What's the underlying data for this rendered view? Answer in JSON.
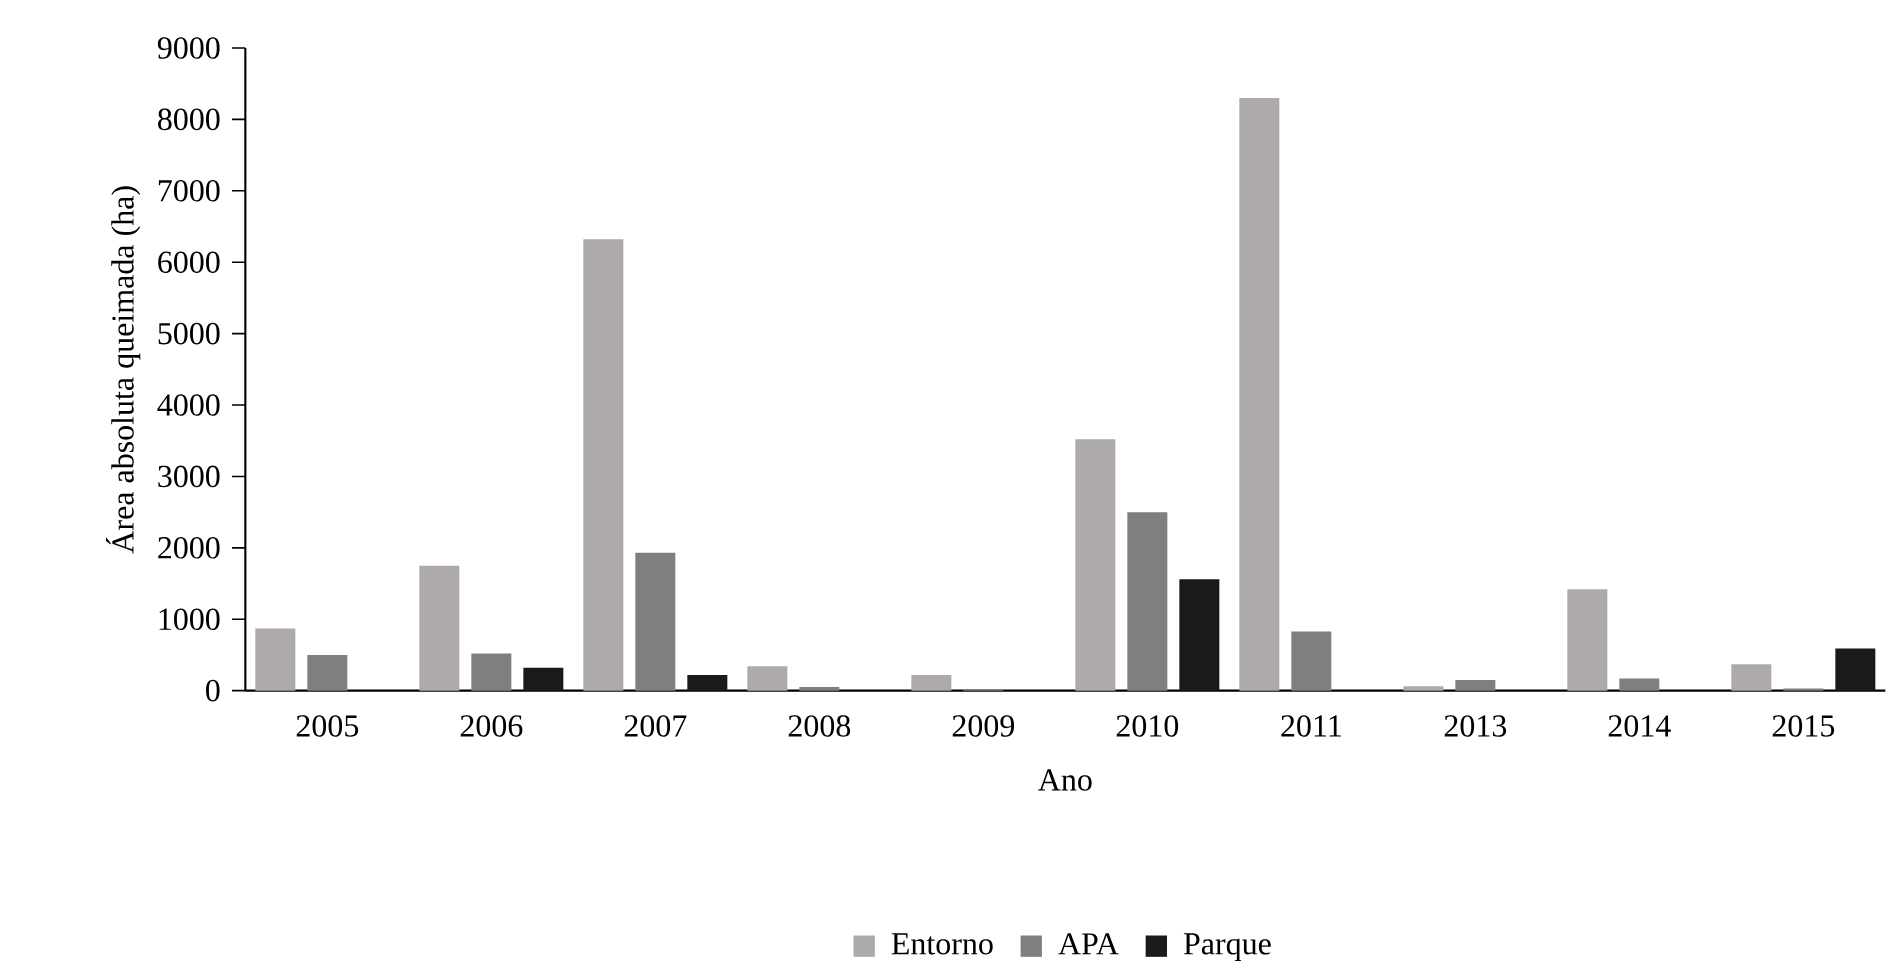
{
  "chart_data": {
    "type": "bar",
    "xlabel": "Ano",
    "ylabel": "Área absoluta queimada (ha)",
    "categories": [
      "2005",
      "2006",
      "2007",
      "2008",
      "2009",
      "2010",
      "2011",
      "2013",
      "2014",
      "2015"
    ],
    "series": [
      {
        "name": "Entorno",
        "color": "#aeaaaa",
        "values": [
          870,
          1750,
          6320,
          340,
          220,
          3520,
          8300,
          60,
          1420,
          370
        ]
      },
      {
        "name": "APA",
        "color": "#7f7f7f",
        "values": [
          500,
          520,
          1930,
          50,
          10,
          2500,
          830,
          150,
          170,
          30
        ]
      },
      {
        "name": "Parque",
        "color": "#1a1a1a",
        "values": [
          0,
          320,
          220,
          0,
          0,
          1560,
          0,
          0,
          0,
          590
        ]
      }
    ],
    "ylim": [
      0,
      9000
    ],
    "yticks": [
      0,
      1000,
      2000,
      3000,
      4000,
      5000,
      6000,
      7000,
      8000,
      9000
    ],
    "grid": false,
    "legend": "bottom"
  }
}
